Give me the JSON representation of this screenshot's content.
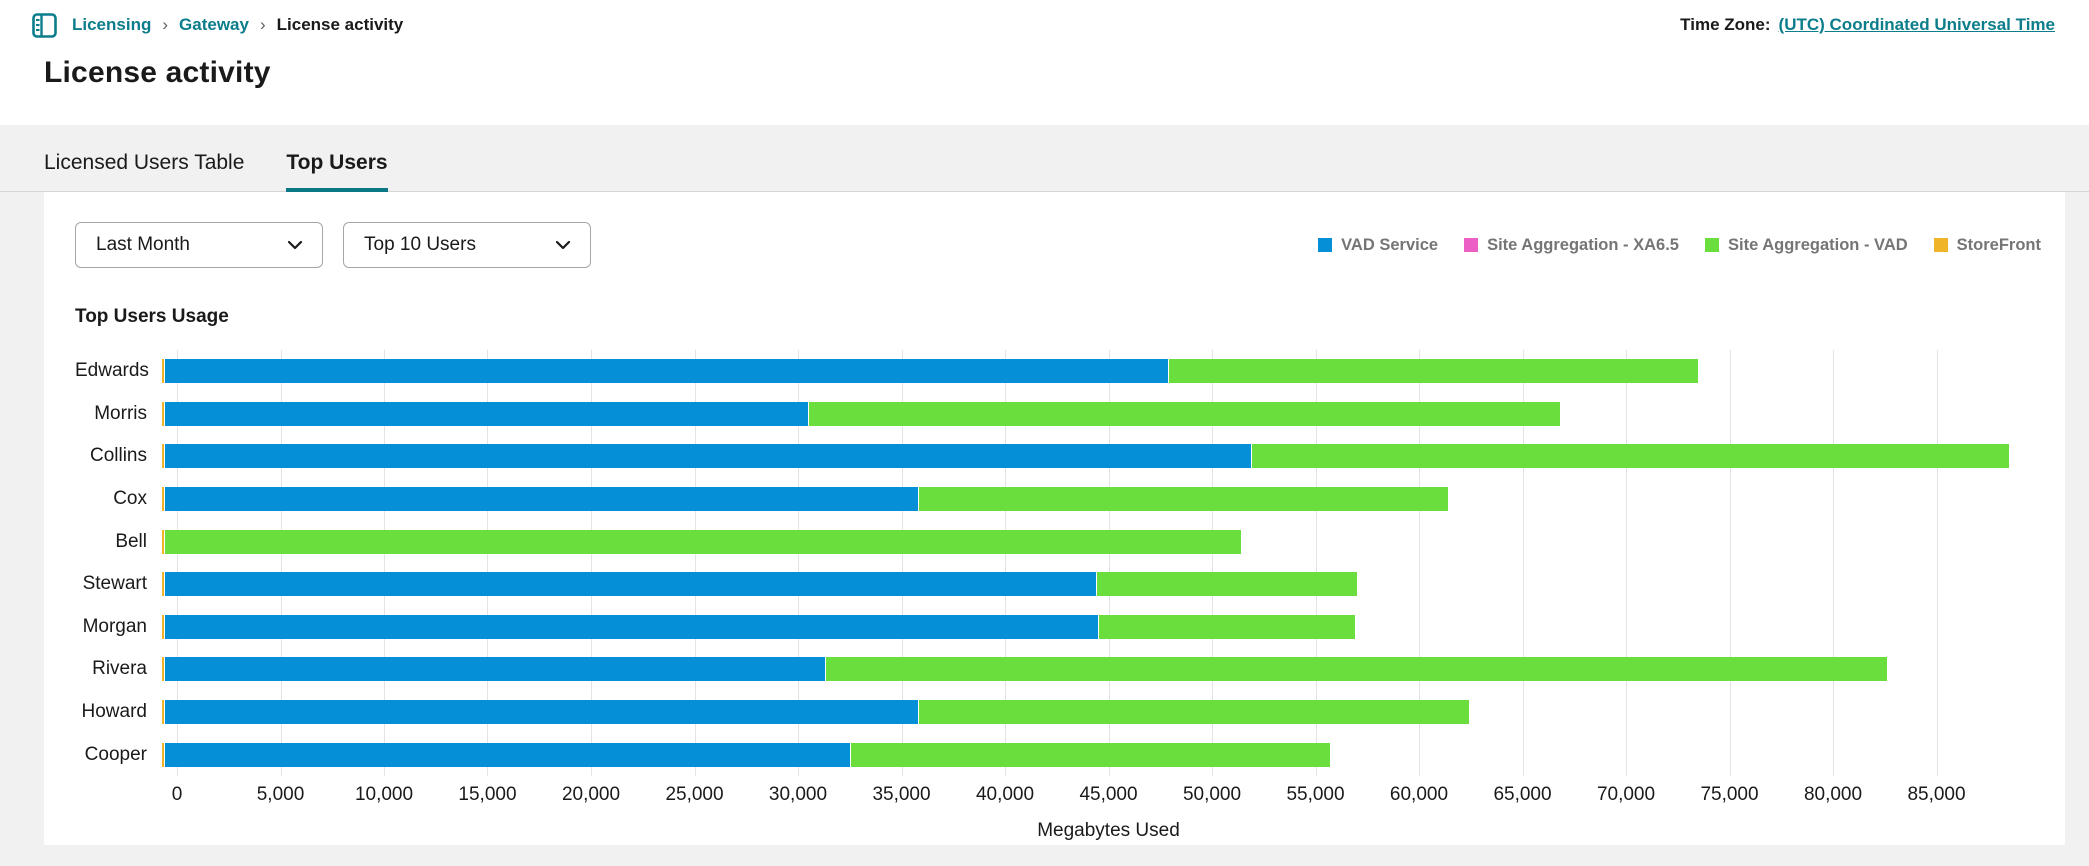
{
  "breadcrumb": {
    "items": [
      {
        "label": "Licensing"
      },
      {
        "label": "Gateway"
      }
    ],
    "current": "License activity",
    "separator": "›"
  },
  "timezone": {
    "label": "Time Zone:",
    "value": "(UTC) Coordinated Universal Time"
  },
  "page_title": "License activity",
  "tabs": [
    {
      "label": "Licensed Users Table",
      "active": false
    },
    {
      "label": "Top Users",
      "active": true
    }
  ],
  "filters": {
    "period": "Last Month",
    "top_users": "Top 10 Users"
  },
  "colors": {
    "accent_teal": "#0b7d8b",
    "tab_underline": "#0a7885",
    "page_background": "#f1f1f1"
  },
  "chart_data": {
    "type": "bar",
    "orientation": "horizontal",
    "stacked": true,
    "title": "Top Users Usage",
    "xlabel": "Megabytes Used",
    "xlim": [
      0,
      90000
    ],
    "xticks": [
      0,
      5000,
      10000,
      15000,
      20000,
      25000,
      30000,
      35000,
      40000,
      45000,
      50000,
      55000,
      60000,
      65000,
      70000,
      75000,
      80000,
      85000
    ],
    "grid": true,
    "legend_position": "top-right",
    "categories": [
      "Edwards",
      "Morris",
      "Collins",
      "Cox",
      "Bell",
      "Stewart",
      "Morgan",
      "Rivera",
      "Howard",
      "Cooper"
    ],
    "series": [
      {
        "name": "VAD Service",
        "color": "#058fd6",
        "values": [
          48500,
          31100,
          52500,
          36400,
          0,
          45000,
          45100,
          31900,
          36400,
          33100
        ]
      },
      {
        "name": "Site Aggregation - XA6.5",
        "color": "#ec5fc4",
        "values": [
          0,
          0,
          0,
          0,
          0,
          0,
          0,
          0,
          0,
          0
        ]
      },
      {
        "name": "Site Aggregation - VAD",
        "color": "#69de3c",
        "values": [
          25600,
          36300,
          36600,
          25600,
          52000,
          12600,
          12400,
          51300,
          26600,
          23200
        ]
      },
      {
        "name": "StoreFront",
        "color": "#f0b429",
        "values": [
          120,
          120,
          120,
          120,
          120,
          120,
          120,
          120,
          120,
          120
        ]
      }
    ],
    "stack_order": [
      "StoreFront",
      "VAD Service",
      "Site Aggregation - XA6.5",
      "Site Aggregation - VAD"
    ],
    "totals": [
      74220,
      67520,
      89220,
      62120,
      52120,
      57720,
      57620,
      83320,
      63120,
      56420
    ]
  }
}
